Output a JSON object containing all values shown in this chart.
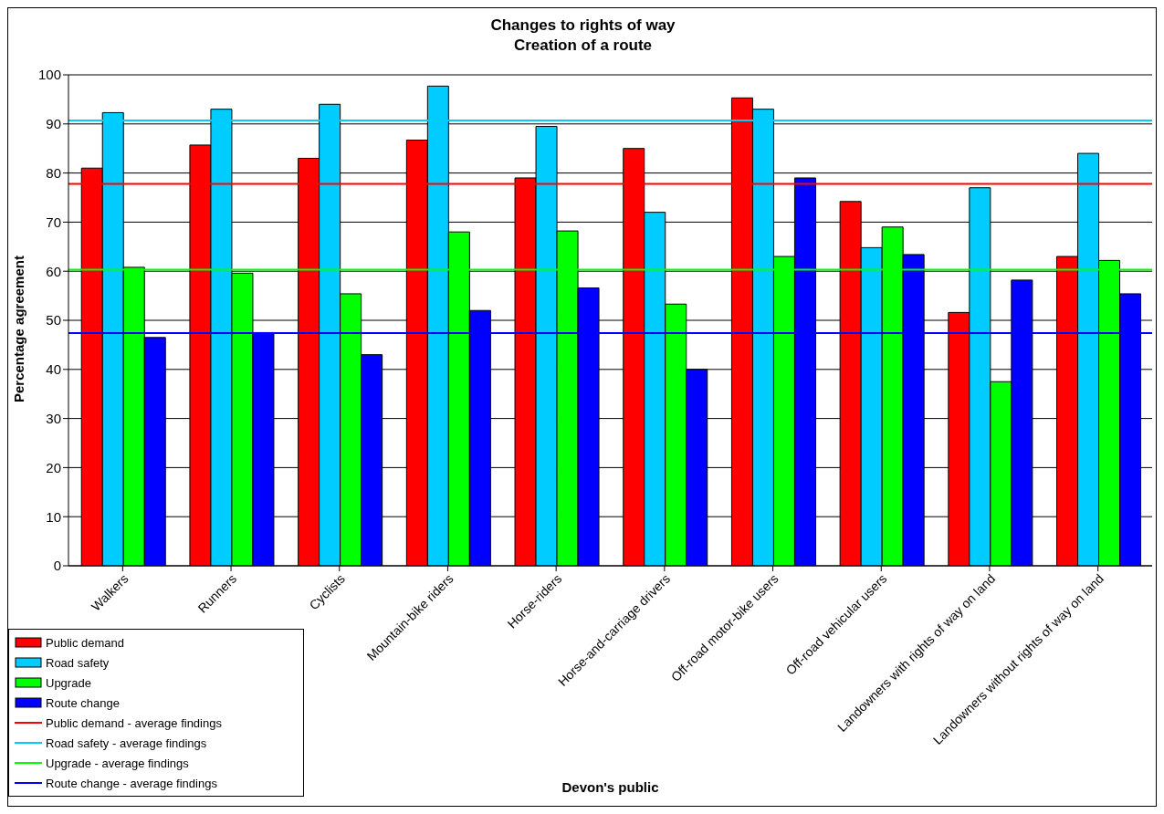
{
  "chart_data": {
    "type": "bar",
    "title": "Changes to rights of way",
    "subtitle": "Creation of a route",
    "xlabel": "Devon's public",
    "ylabel": "Percentage agreement",
    "categories": [
      "Walkers",
      "Runners",
      "Cyclists",
      "Mountain-bike riders",
      "Horse-riders",
      "Horse-and-carriage drivers",
      "Off-road motor-bike users",
      "Off-road vehicular users",
      "Landowners with rights of way on land",
      "Landowners without rights of way on land"
    ],
    "series": [
      {
        "name": "Public demand",
        "color": "#ff0000",
        "values": [
          81,
          85.7,
          83,
          86.7,
          79,
          85,
          95.3,
          74.2,
          51.6,
          63
        ]
      },
      {
        "name": "Road safety",
        "color": "#00ccff",
        "values": [
          92.3,
          93,
          94,
          97.7,
          89.5,
          72,
          93,
          64.8,
          77,
          84
        ]
      },
      {
        "name": "Upgrade",
        "color": "#00ff00",
        "values": [
          60.8,
          59.6,
          55.4,
          68,
          68.2,
          53.3,
          63,
          69,
          37.5,
          62.2
        ]
      },
      {
        "name": "Route change",
        "color": "#0000ff",
        "values": [
          46.5,
          47.5,
          43,
          52,
          56.6,
          40,
          79,
          63.4,
          58.2,
          55.4
        ]
      }
    ],
    "ref_lines": [
      {
        "axis": "y",
        "value": 77.8,
        "label": "Public demand - average findings",
        "color": "#ff0000"
      },
      {
        "axis": "y",
        "value": 90.7,
        "label": "Road safety - average findings",
        "color": "#00ccff"
      },
      {
        "axis": "y",
        "value": 60.3,
        "label": "Upgrade - average findings",
        "color": "#00ff00"
      },
      {
        "axis": "y",
        "value": 47.4,
        "label": "Route change - average findings",
        "color": "#0000ff"
      }
    ],
    "ylim": [
      0,
      100
    ],
    "yticks": [
      0,
      10,
      20,
      30,
      40,
      50,
      60,
      70,
      80,
      90,
      100
    ],
    "grid": "y",
    "legend": "bottom left"
  }
}
